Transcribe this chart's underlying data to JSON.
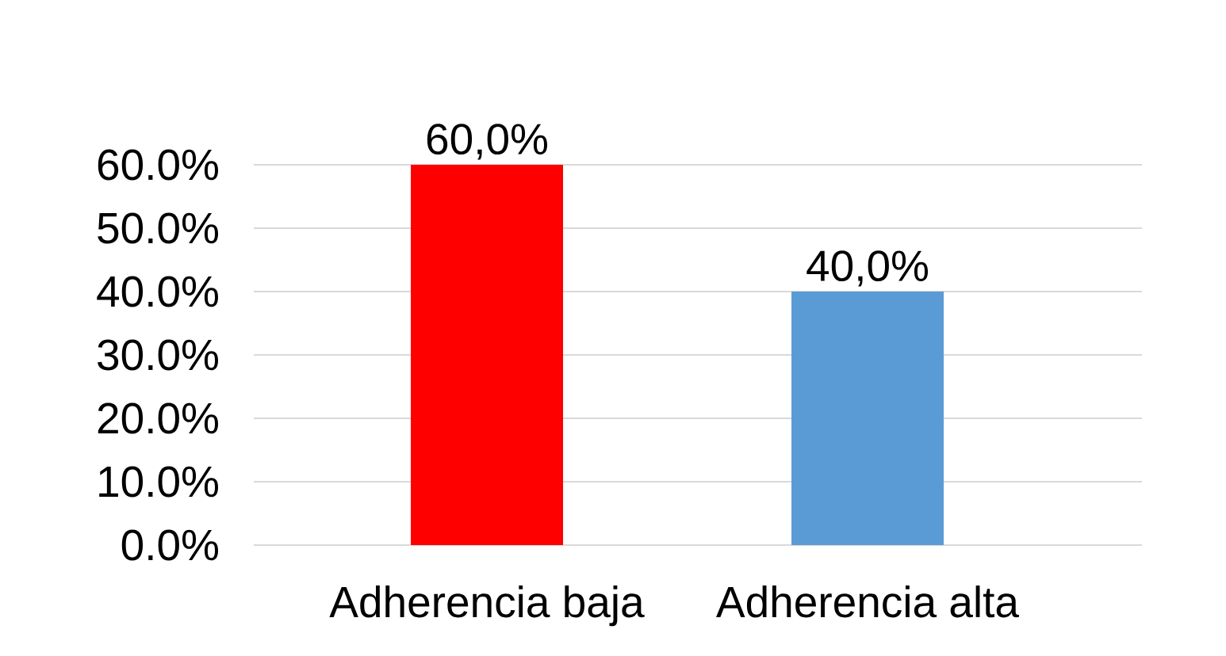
{
  "chart_data": {
    "type": "bar",
    "categories": [
      "Adherencia baja",
      "Adherencia alta"
    ],
    "values": [
      60,
      40
    ],
    "colors": [
      "#ff0000",
      "#5b9bd5"
    ],
    "value_labels": [
      "60,0%",
      "40,0%"
    ],
    "ylim": [
      0,
      60
    ],
    "yticks": [
      {
        "value": 0,
        "label": "0.0%"
      },
      {
        "value": 10,
        "label": "10.0%"
      },
      {
        "value": 20,
        "label": "20.0%"
      },
      {
        "value": 30,
        "label": "30.0%"
      },
      {
        "value": 40,
        "label": "40.0%"
      },
      {
        "value": 50,
        "label": "50.0%"
      },
      {
        "value": 60,
        "label": "60.0%"
      }
    ],
    "grid": "y"
  }
}
